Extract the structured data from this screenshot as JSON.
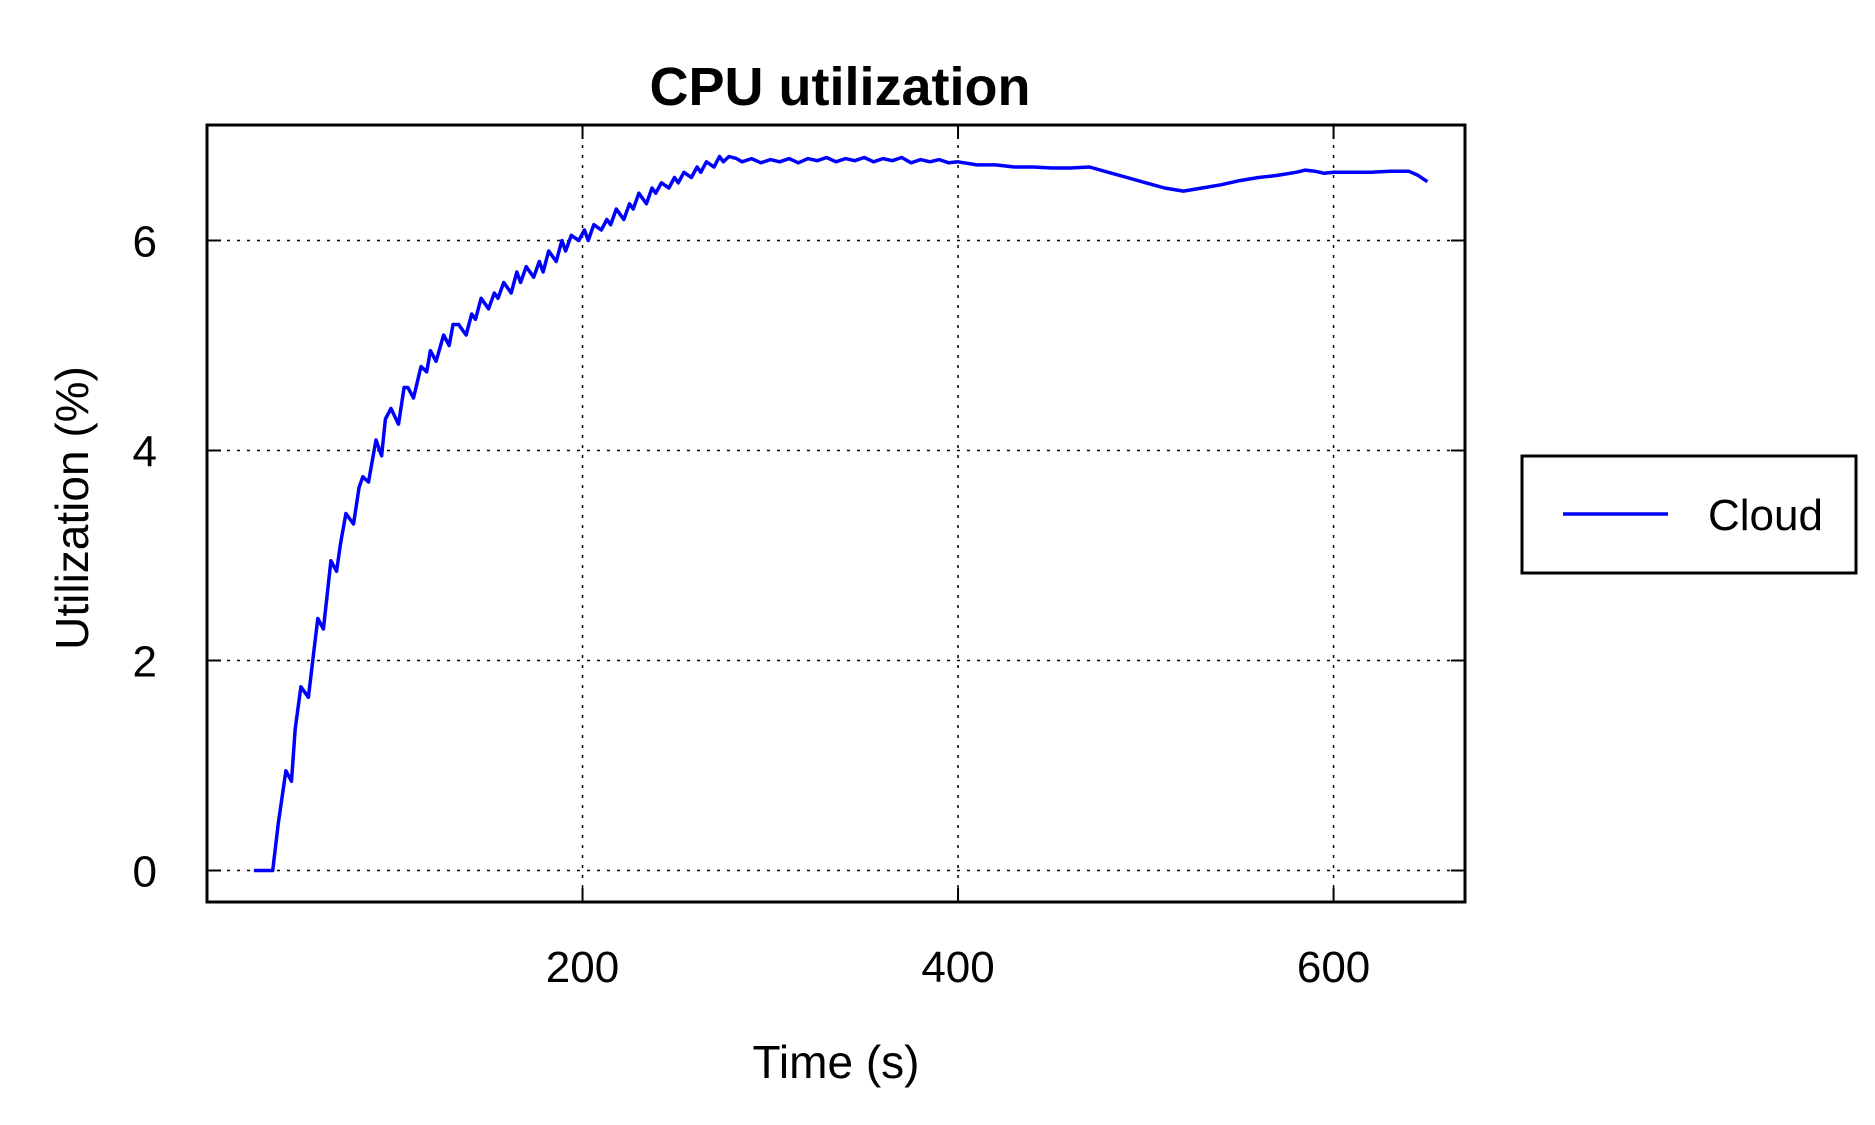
{
  "chart_data": {
    "type": "line",
    "title": "CPU utilization",
    "xlabel": "Time (s)",
    "ylabel": "Utilization (%)",
    "xlim": [
      0,
      670
    ],
    "ylim": [
      -0.3,
      7.1
    ],
    "xticks": [
      200,
      400,
      600
    ],
    "yticks": [
      0,
      2,
      4,
      6
    ],
    "grid": true,
    "legend_position": "outside-right",
    "series": [
      {
        "name": "Cloud",
        "color": "#0000ff",
        "x": [
          25,
          33,
          35,
          38,
          42,
          45,
          47,
          50,
          54,
          57,
          59,
          62,
          66,
          69,
          71,
          74,
          78,
          81,
          83,
          86,
          90,
          93,
          95,
          98,
          102,
          105,
          107,
          110,
          114,
          117,
          119,
          122,
          126,
          129,
          131,
          134,
          138,
          141,
          143,
          146,
          150,
          153,
          155,
          158,
          162,
          165,
          167,
          170,
          174,
          177,
          179,
          182,
          186,
          189,
          191,
          194,
          198,
          201,
          203,
          206,
          210,
          213,
          215,
          218,
          222,
          225,
          227,
          230,
          234,
          237,
          239,
          242,
          246,
          249,
          251,
          254,
          258,
          261,
          263,
          266,
          270,
          273,
          275,
          278,
          282,
          285,
          290,
          295,
          300,
          305,
          310,
          315,
          320,
          325,
          330,
          335,
          340,
          345,
          350,
          355,
          360,
          365,
          370,
          375,
          380,
          385,
          390,
          395,
          400,
          410,
          420,
          430,
          440,
          450,
          460,
          470,
          480,
          490,
          500,
          510,
          520,
          530,
          540,
          550,
          560,
          570,
          580,
          585,
          590,
          595,
          600,
          610,
          620,
          630,
          640,
          645,
          650
        ],
        "values": [
          0,
          0,
          0,
          0.45,
          0.95,
          0.85,
          1.35,
          1.75,
          1.65,
          2.1,
          2.4,
          2.3,
          2.95,
          2.85,
          3.1,
          3.4,
          3.3,
          3.65,
          3.75,
          3.7,
          4.1,
          3.95,
          4.3,
          4.4,
          4.25,
          4.6,
          4.6,
          4.5,
          4.8,
          4.75,
          4.95,
          4.85,
          5.1,
          5.0,
          5.2,
          5.2,
          5.1,
          5.3,
          5.25,
          5.45,
          5.35,
          5.5,
          5.45,
          5.6,
          5.5,
          5.7,
          5.6,
          5.75,
          5.65,
          5.8,
          5.7,
          5.9,
          5.8,
          6.0,
          5.9,
          6.05,
          6.0,
          6.1,
          6.0,
          6.15,
          6.1,
          6.2,
          6.15,
          6.3,
          6.2,
          6.35,
          6.3,
          6.45,
          6.35,
          6.5,
          6.45,
          6.55,
          6.5,
          6.6,
          6.55,
          6.65,
          6.6,
          6.7,
          6.65,
          6.75,
          6.7,
          6.8,
          6.75,
          6.8,
          6.78,
          6.75,
          6.78,
          6.74,
          6.77,
          6.75,
          6.78,
          6.74,
          6.78,
          6.76,
          6.79,
          6.75,
          6.78,
          6.76,
          6.79,
          6.75,
          6.78,
          6.76,
          6.79,
          6.74,
          6.77,
          6.75,
          6.77,
          6.74,
          6.75,
          6.72,
          6.72,
          6.7,
          6.7,
          6.69,
          6.69,
          6.7,
          6.65,
          6.6,
          6.55,
          6.5,
          6.47,
          6.5,
          6.53,
          6.57,
          6.6,
          6.62,
          6.65,
          6.67,
          6.66,
          6.64,
          6.65,
          6.65,
          6.65,
          6.66,
          6.66,
          6.62,
          6.56
        ]
      }
    ]
  }
}
